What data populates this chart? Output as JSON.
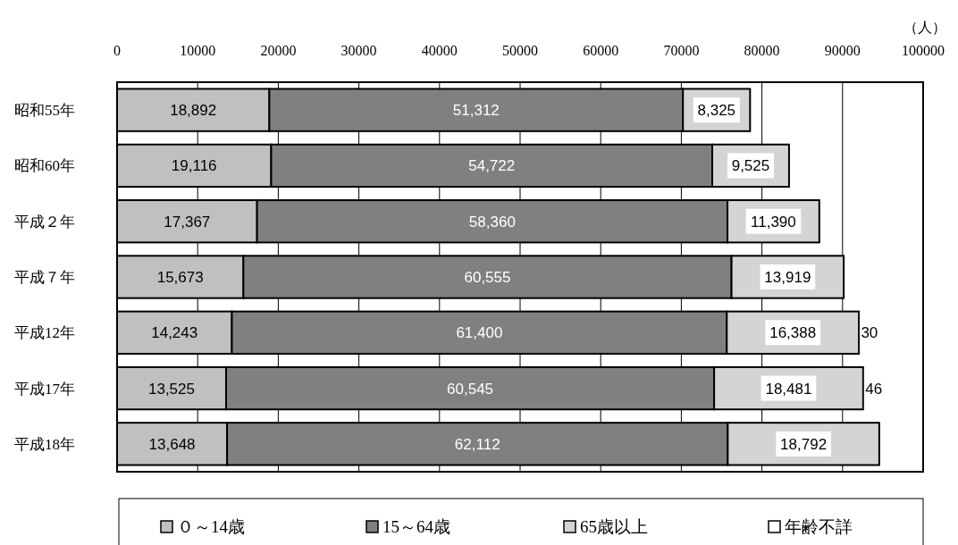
{
  "chart_data": {
    "type": "bar",
    "orientation": "horizontal",
    "stacked": true,
    "xlabel": "（人）",
    "categories": [
      "昭和55年",
      "昭和60年",
      "平成２年",
      "平成７年",
      "平成12年",
      "平成17年",
      "平成18年"
    ],
    "series": [
      {
        "name": "０～14歳",
        "color": "#c0c0c0",
        "values": [
          18892,
          19116,
          17367,
          15673,
          14243,
          13525,
          13648
        ],
        "value_labels": [
          "18,892",
          "19,116",
          "17,367",
          "15,673",
          "14,243",
          "13,525",
          "13,648"
        ]
      },
      {
        "name": "15～64歳",
        "color": "#808080",
        "values": [
          51312,
          54722,
          58360,
          60555,
          61400,
          60545,
          62112
        ],
        "value_labels": [
          "51,312",
          "54,722",
          "58,360",
          "60,555",
          "61,400",
          "60,545",
          "62,112"
        ]
      },
      {
        "name": "65歳以上",
        "color": "#d4d4d4",
        "values": [
          8325,
          9525,
          11390,
          13919,
          16388,
          18481,
          18792
        ],
        "value_labels": [
          "8,325",
          "9,525",
          "11,390",
          "13,919",
          "16,388",
          "18,481",
          "18,792"
        ]
      },
      {
        "name": "年齢不詳",
        "color": "#ffffff",
        "values": [
          null,
          null,
          null,
          null,
          30,
          46,
          null
        ],
        "value_labels": [
          null,
          null,
          null,
          null,
          "30",
          "46",
          null
        ]
      }
    ],
    "xlim": [
      0,
      100000
    ],
    "xticks": [
      0,
      10000,
      20000,
      30000,
      40000,
      50000,
      60000,
      70000,
      80000,
      90000,
      100000
    ],
    "grid": "x",
    "legend": "bottom"
  }
}
